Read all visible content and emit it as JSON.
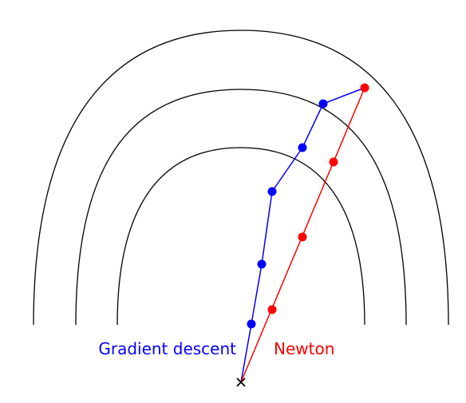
{
  "colors": {
    "background": "#ffffff",
    "contour": "#000000",
    "gradient": "#0000ff",
    "newton": "#ff0000",
    "minimum_marker": "#000000"
  },
  "labels": {
    "gradient": "Gradient descent",
    "newton": "Newton"
  },
  "minimum_marker_icon": "cross-icon"
}
